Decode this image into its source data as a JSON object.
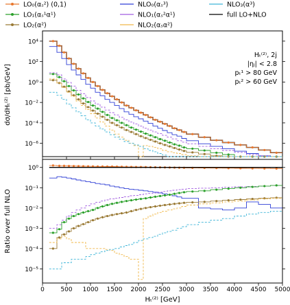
{
  "colors": {
    "LO0": "#e8772e",
    "LO1": "#2ca02c",
    "LO2": "#9a7a35",
    "NLO0": "#2f3fd6",
    "NLO1": "#a15ce0",
    "NLO2": "#f0b84a",
    "NLO3": "#3fb5d8",
    "full": "#000000"
  },
  "legend": [
    {
      "key": "LO0",
      "label": "LO₀(αₛ²) (0,1)",
      "marker": "dot",
      "dash": false
    },
    {
      "key": "NLO0",
      "label": "NLO₀(αₛ³)",
      "marker": "none",
      "dash": false
    },
    {
      "key": "NLO3",
      "label": "NLO₃(α³)",
      "marker": "none",
      "dash": false
    },
    {
      "key": "LO1",
      "label": "LO₁(αₛ¹α¹)",
      "marker": "dot",
      "dash": false
    },
    {
      "key": "NLO1",
      "label": "NLO₁(αₛ²α¹)",
      "marker": "none",
      "dash": false
    },
    {
      "key": "full",
      "label": "full LO+NLO",
      "marker": "none",
      "dash": false
    },
    {
      "key": "LO2",
      "label": "LO₂(α²)",
      "marker": "dot",
      "dash": false
    },
    {
      "key": "NLO2",
      "label": "NLO₂(αₛα²)",
      "marker": "none",
      "dash": false
    }
  ],
  "annotation": [
    "Hₜ⁽²⁾, 2j",
    "|ηⱼ| < 2.8",
    "pₜ¹ > 80 GeV",
    "pₜ² > 60 GeV"
  ],
  "chart_data": {
    "type": "line",
    "drawstyle": "steps",
    "xlabel": "Hₜ⁽²⁾ [GeV]",
    "xlim": [
      0,
      5000
    ],
    "xticks": [
      0,
      500,
      1000,
      1500,
      2000,
      2500,
      3000,
      3500,
      4000,
      4500,
      5000
    ],
    "bin_edges": [
      140,
      300,
      400,
      500,
      600,
      700,
      800,
      900,
      1000,
      1100,
      1200,
      1300,
      1400,
      1500,
      1600,
      1700,
      1800,
      1900,
      2000,
      2100,
      2200,
      2300,
      2400,
      2500,
      2600,
      2700,
      2800,
      2900,
      3000,
      3250,
      3500,
      3750,
      4000,
      4250,
      4500,
      4750,
      5000
    ],
    "top": {
      "ylabel": "dσ/dHₜ⁽²⁾ [pb/GeV]",
      "yscale": "log",
      "ylim": [
        5e-08,
        100000.0
      ],
      "yticks": [
        1e-06,
        0.0001,
        0.01,
        1.0,
        100.0,
        10000.0
      ],
      "yticklabels": [
        "10⁻⁶",
        "10⁻⁴",
        "10⁻²",
        "10⁰",
        "10²",
        "10⁴"
      ],
      "series": [
        {
          "key": "full",
          "values": [
            10000,
            3500,
            800,
            200,
            60,
            20,
            7,
            2.5,
            1,
            0.4,
            0.17,
            0.08,
            0.04,
            0.02,
            0.01,
            0.005,
            0.003,
            0.0017,
            0.001,
            0.0006,
            0.00035,
            0.0002,
            0.00013,
            8e-05,
            5e-05,
            3e-05,
            2e-05,
            1.3e-05,
            8e-06,
            4e-06,
            2e-06,
            1.2e-06,
            7e-07,
            4e-07,
            2.2e-07,
            1.2e-07
          ]
        },
        {
          "key": "LO0",
          "values": [
            10000,
            3500,
            800,
            200,
            60,
            20,
            7,
            2.5,
            1,
            0.4,
            0.17,
            0.08,
            0.04,
            0.02,
            0.01,
            0.005,
            0.003,
            0.0017,
            0.001,
            0.0006,
            0.00035,
            0.0002,
            0.00013,
            8e-05,
            5e-05,
            3e-05,
            2e-05,
            1.3e-05,
            8e-06,
            4e-06,
            2e-06,
            1.2e-06,
            7e-07,
            4e-07,
            2.2e-07,
            1.2e-07
          ]
        },
        {
          "key": "NLO0",
          "values": [
            3000,
            800,
            200,
            50,
            15,
            5,
            1.8,
            0.6,
            0.25,
            0.1,
            0.045,
            0.02,
            0.01,
            0.005,
            0.0025,
            0.0012,
            0.0007,
            0.0004,
            0.00025,
            0.00015,
            9e-05,
            5e-05,
            3e-05,
            1.8e-05,
            1.1e-05,
            7e-06,
            5e-06,
            3e-06,
            1.8e-06,
            9e-07,
            5e-07,
            3e-07,
            1.7e-07,
            1e-07,
            6e-08,
            4e-08
          ]
        },
        {
          "key": "LO1",
          "values": [
            6,
            3,
            1.2,
            0.4,
            0.15,
            0.06,
            0.025,
            0.011,
            0.005,
            0.0025,
            0.0012,
            0.0006,
            0.0003,
            0.00018,
            0.0001,
            6e-05,
            3.5e-05,
            2.2e-05,
            1.4e-05,
            9e-06,
            6e-06,
            4e-06,
            2.6e-06,
            1.8e-06,
            1.2e-06,
            8e-07,
            6e-07,
            4e-07,
            3e-07,
            2e-07,
            1.2e-07,
            8e-08,
            5e-08,
            3.5e-08,
            2.5e-08,
            1.5e-08
          ]
        },
        {
          "key": "NLO1",
          "values": [
            8,
            5,
            2,
            0.9,
            0.4,
            0.15,
            0.07,
            0.03,
            0.014,
            0.007,
            0.0035,
            0.0018,
            0.001,
            0.0006,
            0.00035,
            0.0002,
            0.00012,
            8e-05,
            5e-05,
            3e-05,
            2e-05,
            1.3e-05,
            9e-06,
            6e-06,
            4e-06,
            2.7e-06,
            1.8e-06,
            1.3e-06,
            9e-07,
            5e-07,
            3e-07,
            2e-07,
            1.3e-07,
            8e-08,
            6e-08,
            4e-08
          ]
        },
        {
          "key": "LO2",
          "values": [
            1.5,
            0.8,
            0.35,
            0.12,
            0.05,
            0.02,
            0.008,
            0.0035,
            0.0016,
            0.0008,
            0.0004,
            0.0002,
            0.0001,
            6e-05,
            3.5e-05,
            2e-05,
            1.3e-05,
            8e-06,
            5e-06,
            3.3e-06,
            2.2e-06,
            1.5e-06,
            1e-06,
            7e-07,
            5e-07,
            3.5e-07,
            2.5e-07,
            1.8e-07,
            1.3e-07,
            9e-08,
            6e-08,
            4e-08,
            3e-08,
            2e-08,
            1.4e-08,
            1e-08
          ]
        },
        {
          "key": "NLO2",
          "values": [
            2,
            0.8,
            0.3,
            0.1,
            0.04,
            0.014,
            0.005,
            0.002,
            0.0008,
            0.0003,
            0.00012,
            5e-05,
            2e-05,
            8e-06,
            4e-06,
            2e-06,
            1e-06,
            6e-07,
            2e-10,
            6e-07,
            5e-07,
            4e-07,
            3e-07,
            2e-07,
            1.5e-07,
            1.2e-07,
            1e-07,
            8e-08,
            6e-08,
            4e-08,
            3e-08,
            2e-08,
            1.4e-08,
            1e-08,
            8e-09,
            6e-09
          ]
        },
        {
          "key": "NLO3",
          "values": [
            0.1,
            0.05,
            0.02,
            0.007,
            0.003,
            0.0012,
            0.0005,
            0.0002,
            0.0001,
            5e-05,
            2.5e-05,
            1.3e-05,
            7e-06,
            4e-06,
            2.5e-06,
            1.5e-06,
            1e-06,
            7e-07,
            5e-07,
            3e-07,
            2e-07,
            1.5e-07,
            1e-07,
            7e-08,
            5e-08,
            4e-08,
            3e-08,
            2e-08,
            1.5e-08,
            1e-08,
            7e-09,
            5e-09,
            4e-09,
            3e-09,
            2.5e-09,
            2e-09
          ]
        }
      ]
    },
    "bottom": {
      "ylabel": "Ratio over full NLO",
      "yscale": "log",
      "ylim": [
        2e-06,
        2.5
      ],
      "yticks": [
        1e-05,
        0.0001,
        0.001,
        0.01,
        0.1,
        1
      ],
      "yticklabels": [
        "10⁻⁵",
        "10⁻⁴",
        "10⁻³",
        "10⁻²",
        "10⁻¹",
        "10⁰"
      ],
      "series": [
        {
          "key": "LO0",
          "values": [
            1.25,
            1.2,
            1.2,
            1.18,
            1.17,
            1.16,
            1.15,
            1.14,
            1.13,
            1.12,
            1.11,
            1.1,
            1.1,
            1.09,
            1.08,
            1.07,
            1.06,
            1.05,
            1.05,
            1.04,
            1.03,
            1.02,
            1.01,
            1.0,
            0.99,
            0.98,
            0.97,
            0.96,
            0.95,
            0.94,
            0.93,
            0.92,
            0.91,
            0.9,
            0.89,
            0.88
          ]
        },
        {
          "key": "full",
          "values": [
            1,
            1,
            1,
            1,
            1,
            1,
            1,
            1,
            1,
            1,
            1,
            1,
            1,
            1,
            1,
            1,
            1,
            1,
            1,
            1,
            1,
            1,
            1,
            1,
            1,
            1,
            1,
            1,
            1,
            1,
            1,
            1,
            1,
            1,
            1,
            1
          ]
        },
        {
          "key": "NLO0",
          "values": [
            0.3,
            0.35,
            0.33,
            0.3,
            0.27,
            0.24,
            0.22,
            0.2,
            0.18,
            0.16,
            0.15,
            0.14,
            0.12,
            0.11,
            0.1,
            0.09,
            0.085,
            0.08,
            0.075,
            0.07,
            0.065,
            0.06,
            0.055,
            0.05,
            0.045,
            0.04,
            0.035,
            0.03,
            0.03,
            0.01,
            0.009,
            0.008,
            0.01,
            0.02,
            0.015,
            0.01
          ]
        },
        {
          "key": "NLO1",
          "values": [
            0.001,
            0.0015,
            0.0025,
            0.004,
            0.006,
            0.008,
            0.01,
            0.013,
            0.016,
            0.019,
            0.022,
            0.025,
            0.028,
            0.03,
            0.033,
            0.036,
            0.04,
            0.042,
            0.045,
            0.05,
            0.052,
            0.055,
            0.06,
            0.065,
            0.07,
            0.075,
            0.08,
            0.085,
            0.09,
            0.095,
            0.1,
            0.105,
            0.11,
            0.115,
            0.12,
            0.13
          ]
        },
        {
          "key": "LO1",
          "values": [
            0.0006,
            0.0009,
            0.002,
            0.003,
            0.004,
            0.005,
            0.006,
            0.007,
            0.008,
            0.01,
            0.012,
            0.014,
            0.016,
            0.018,
            0.02,
            0.022,
            0.024,
            0.026,
            0.028,
            0.03,
            0.033,
            0.036,
            0.039,
            0.042,
            0.045,
            0.05,
            0.055,
            0.06,
            0.065,
            0.07,
            0.08,
            0.09,
            0.1,
            0.11,
            0.12,
            0.13
          ]
        },
        {
          "key": "LO2",
          "values": [
            0.0001,
            0.00035,
            0.0005,
            0.0007,
            0.001,
            0.0013,
            0.0016,
            0.002,
            0.0025,
            0.003,
            0.0035,
            0.004,
            0.0045,
            0.005,
            0.0055,
            0.006,
            0.007,
            0.008,
            0.009,
            0.01,
            0.011,
            0.012,
            0.013,
            0.014,
            0.015,
            0.016,
            0.017,
            0.018,
            0.019,
            0.02,
            0.022,
            0.024,
            0.026,
            0.028,
            0.03,
            0.032
          ]
        },
        {
          "key": "NLO2",
          "values": [
            0.0002,
            0.0003,
            0.0004,
            0.0003,
            0.0002,
            0.0002,
            0.0002,
            0.0001,
            0.0001,
            0.0001,
            0.0001,
            9e-05,
            8e-05,
            6e-05,
            5e-05,
            4e-05,
            3e-05,
            3e-05,
            3e-06,
            0.003,
            0.004,
            0.005,
            0.006,
            0.007,
            0.008,
            0.009,
            0.01,
            0.012,
            0.014,
            0.016,
            0.018,
            0.02,
            0.022,
            0.025,
            0.028,
            0.03
          ]
        },
        {
          "key": "NLO3",
          "values": [
            1e-05,
            1e-05,
            2e-05,
            2e-05,
            3e-05,
            3e-05,
            3e-05,
            4e-05,
            5e-05,
            6e-05,
            7e-05,
            8e-05,
            9e-05,
            0.0001,
            0.00012,
            0.00014,
            0.00016,
            0.0002,
            0.00025,
            0.0003,
            0.00035,
            0.0004,
            0.0005,
            0.0006,
            0.0007,
            0.0008,
            0.001,
            0.0012,
            0.0015,
            0.002,
            0.0025,
            0.003,
            0.004,
            0.005,
            0.006,
            0.007
          ]
        }
      ]
    }
  }
}
